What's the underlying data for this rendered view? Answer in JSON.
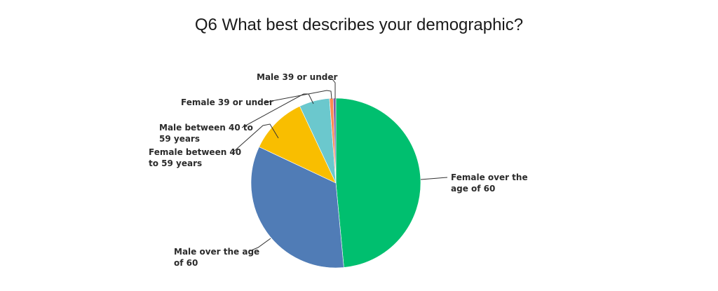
{
  "chart_data": {
    "type": "pie",
    "title": "Q6 What best describes your demographic?",
    "categories": [
      "Female over the age of 60",
      "Male over the age of 60",
      "Female between 40 to 59 years",
      "Male between 40 to 59 years",
      "Female 39 or under",
      "Male 39 or under"
    ],
    "label_lines": [
      [
        "Female over the",
        "age of 60"
      ],
      [
        "Male over the age",
        "of 60"
      ],
      [
        "Female between 40",
        "to 59 years"
      ],
      [
        "Male between 40 to",
        "59 years"
      ],
      [
        "Female 39 or under"
      ],
      [
        "Male 39 or under"
      ]
    ],
    "values": [
      48.5,
      33.5,
      11.0,
      5.8,
      0.7,
      0.5
    ],
    "unit": "%",
    "colors": [
      "#00bf6f",
      "#507cb6",
      "#f9be00",
      "#6bc8cd",
      "#ff8b4f",
      "#7d5aa6"
    ]
  }
}
